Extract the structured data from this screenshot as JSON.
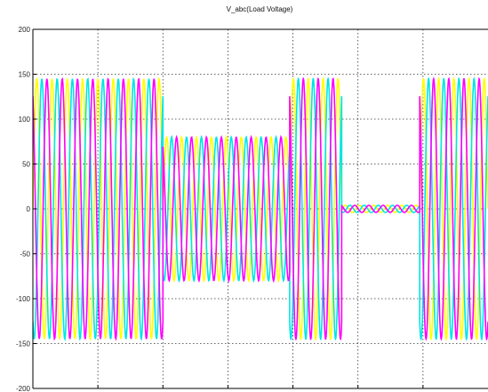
{
  "chart_data": {
    "type": "line",
    "title": "V_abc(Load Voltage)",
    "xlabel": "",
    "ylabel": "",
    "ylim": [
      -200,
      200
    ],
    "yticks": [
      200,
      150,
      100,
      50,
      0,
      -50,
      -100,
      -150,
      -200
    ],
    "ytick_labels": [
      "200",
      "150",
      "100",
      "50",
      "0",
      "-50",
      "-100",
      "-150",
      "-200"
    ],
    "xlim": [
      0,
      7
    ],
    "x_gridlines": [
      1,
      2,
      3,
      4,
      5,
      6
    ],
    "grid": true,
    "series_style": [
      {
        "color": "#ffff00",
        "phase_deg": 0
      },
      {
        "color": "#00e5e5",
        "phase_deg": -120
      },
      {
        "color": "#ff00ff",
        "phase_deg": 120
      }
    ],
    "segments": [
      {
        "x_start": 0.0,
        "x_end": 2.0,
        "amplitude": 145,
        "cycles": 8.5
      },
      {
        "x_start": 2.0,
        "x_end": 3.95,
        "amplitude": 80,
        "cycles": 8.5
      },
      {
        "x_start": 3.95,
        "x_end": 4.75,
        "amplitude": 145,
        "cycles": 3.5
      },
      {
        "x_start": 4.75,
        "x_end": 5.95,
        "amplitude": 4,
        "cycles": 5.5
      },
      {
        "x_start": 5.95,
        "x_end": 7.0,
        "amplitude": 145,
        "cycles": 4.5
      }
    ]
  }
}
